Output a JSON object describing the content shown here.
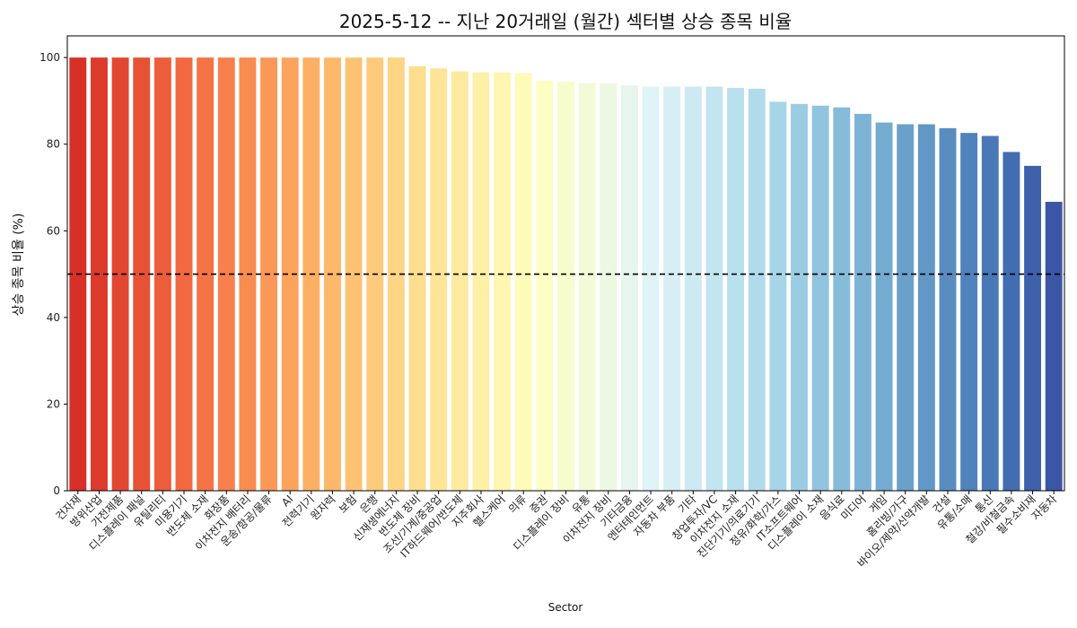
{
  "chart_data": {
    "type": "bar",
    "title": "2025-5-12 -- 지난 20거래일 (월간) 섹터별 상승 종목 비율",
    "xlabel": "Sector",
    "ylabel": "상승 종목 비율 (%)",
    "ylim": [
      0,
      105
    ],
    "yticks": [
      0,
      20,
      40,
      60,
      80,
      100
    ],
    "reference_line": {
      "value": 50,
      "style": "dashed",
      "color": "#000000"
    },
    "grid": false,
    "colormap": "RdYlBu",
    "categories": [
      "건자재",
      "방위산업",
      "가전제품",
      "디스플레이 패널",
      "유틸리티",
      "미용기기",
      "반도체 소재",
      "화장품",
      "이차전지 배터리",
      "운송/항공/물류",
      "AI",
      "전력기기",
      "원자력",
      "보험",
      "은행",
      "신재생에너지",
      "반도체 장비",
      "조선/기계/중공업",
      "IT하드웨어/반도체",
      "지주회사",
      "헬스케어",
      "의류",
      "증권",
      "디스플레이 장비",
      "유통",
      "이차전지 장비",
      "기타금융",
      "엔터테인먼트",
      "자동차 부품",
      "기타",
      "창업투자/VC",
      "이차전지 소재",
      "진단기기/의료기기",
      "정유/화학/가스",
      "IT소프트웨어",
      "디스플레이 소재",
      "음식료",
      "미디어",
      "게임",
      "홈리빙/가구",
      "바이오/제약/신약개발",
      "건설",
      "유통/소매",
      "통신",
      "철강/비철금속",
      "필수소비재",
      "자동차"
    ],
    "values": [
      100,
      100,
      100,
      100,
      100,
      100,
      100,
      100,
      100,
      100,
      100,
      100,
      100,
      100,
      100,
      100,
      98.0,
      97.5,
      96.8,
      96.6,
      96.6,
      96.4,
      94.7,
      94.4,
      94.1,
      94.1,
      93.6,
      93.3,
      93.3,
      93.3,
      93.3,
      93.0,
      92.8,
      89.8,
      89.3,
      88.9,
      88.5,
      87.0,
      85.0,
      84.6,
      84.6,
      83.7,
      82.6,
      81.9,
      78.2,
      75.0,
      66.7
    ]
  }
}
